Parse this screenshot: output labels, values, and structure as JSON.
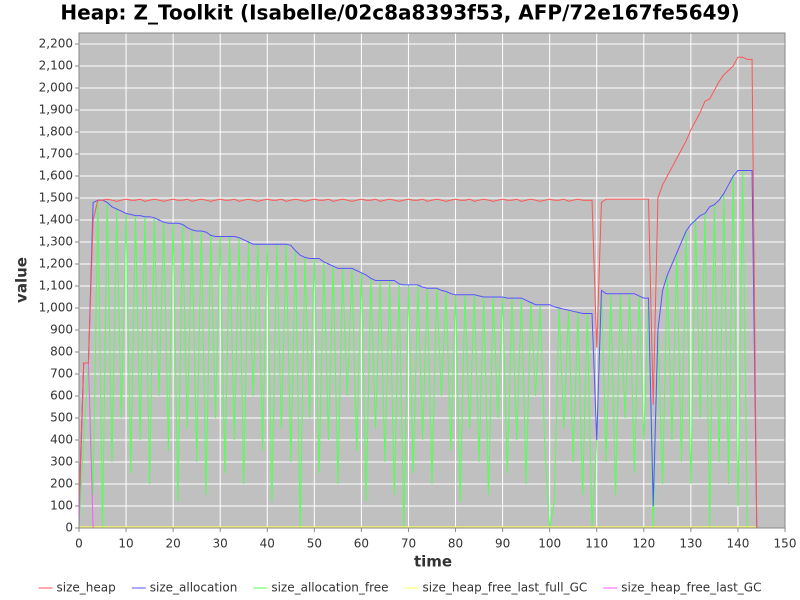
{
  "chart_data": {
    "type": "line",
    "title": "Heap: Z_Toolkit (Isabelle/02c8a8393f53, AFP/72e167fe5649)",
    "x_label": "time",
    "y_label": "value",
    "xlim": [
      0,
      150
    ],
    "xticks": [
      0,
      10,
      20,
      30,
      40,
      50,
      60,
      70,
      80,
      90,
      100,
      110,
      120,
      130,
      140,
      150
    ],
    "ylim": [
      0,
      2250
    ],
    "yticks": [
      0,
      100,
      200,
      300,
      400,
      500,
      600,
      700,
      800,
      900,
      {
        "value": 1000,
        "label": "1,000"
      },
      {
        "value": 1100,
        "label": "1,100"
      },
      {
        "value": 1200,
        "label": "1,200"
      },
      {
        "value": 1300,
        "label": "1,300"
      },
      {
        "value": 1400,
        "label": "1,400"
      },
      {
        "value": 1500,
        "label": "1,500"
      },
      {
        "value": 1600,
        "label": "1,600"
      },
      {
        "value": 1700,
        "label": "1,700"
      },
      {
        "value": 1800,
        "label": "1,800"
      },
      {
        "value": 1900,
        "label": "1,900"
      },
      {
        "value": 2000,
        "label": "2,000"
      },
      {
        "value": 2100,
        "label": "2,100"
      },
      {
        "value": 2200,
        "label": "2,200"
      }
    ],
    "grid": true,
    "legend": "bottom",
    "x": [
      0,
      1,
      2,
      3,
      4,
      5,
      6,
      7,
      8,
      9,
      10,
      11,
      12,
      13,
      14,
      15,
      16,
      17,
      18,
      19,
      20,
      21,
      22,
      23,
      24,
      25,
      26,
      27,
      28,
      29,
      30,
      31,
      32,
      33,
      34,
      35,
      36,
      37,
      38,
      39,
      40,
      41,
      42,
      43,
      44,
      45,
      46,
      47,
      48,
      49,
      50,
      51,
      52,
      53,
      54,
      55,
      56,
      57,
      58,
      59,
      60,
      61,
      62,
      63,
      64,
      65,
      66,
      67,
      68,
      69,
      70,
      71,
      72,
      73,
      74,
      75,
      76,
      77,
      78,
      79,
      80,
      81,
      82,
      83,
      84,
      85,
      86,
      87,
      88,
      89,
      90,
      91,
      92,
      93,
      94,
      95,
      96,
      97,
      98,
      99,
      100,
      101,
      102,
      103,
      104,
      105,
      106,
      107,
      108,
      109,
      110,
      111,
      112,
      113,
      114,
      115,
      116,
      117,
      118,
      119,
      120,
      121,
      122,
      123,
      124,
      125,
      126,
      127,
      128,
      129,
      130,
      131,
      132,
      133,
      134,
      135,
      136,
      137,
      138,
      139,
      140,
      141,
      142,
      143,
      144
    ],
    "series": [
      {
        "name": "size_heap",
        "color": "#ff5555",
        "values": [
          100,
          750,
          750,
          1400,
          1490,
          1490,
          1495,
          1490,
          1485,
          1490,
          1495,
          1490,
          1490,
          1495,
          1485,
          1490,
          1495,
          1490,
          1485,
          1490,
          1495,
          1490,
          1490,
          1495,
          1485,
          1490,
          1495,
          1490,
          1485,
          1490,
          1495,
          1490,
          1490,
          1495,
          1485,
          1490,
          1495,
          1490,
          1485,
          1490,
          1495,
          1490,
          1490,
          1495,
          1485,
          1490,
          1495,
          1490,
          1485,
          1490,
          1495,
          1490,
          1490,
          1495,
          1485,
          1490,
          1495,
          1490,
          1485,
          1490,
          1495,
          1490,
          1490,
          1495,
          1485,
          1490,
          1495,
          1490,
          1485,
          1490,
          1495,
          1490,
          1490,
          1495,
          1485,
          1490,
          1495,
          1490,
          1485,
          1490,
          1495,
          1490,
          1490,
          1495,
          1485,
          1490,
          1495,
          1490,
          1485,
          1490,
          1495,
          1490,
          1490,
          1495,
          1485,
          1490,
          1495,
          1490,
          1485,
          1490,
          1495,
          1490,
          1490,
          1495,
          1485,
          1490,
          1495,
          1490,
          1490,
          1490,
          820,
          1480,
          1495,
          1495,
          1495,
          1495,
          1495,
          1495,
          1495,
          1495,
          1495,
          1495,
          560,
          1500,
          1560,
          1600,
          1640,
          1680,
          1720,
          1760,
          1810,
          1850,
          1890,
          1940,
          1950,
          1990,
          2030,
          2060,
          2080,
          2100,
          2140,
          2140,
          2130,
          2130,
          0
        ]
      },
      {
        "name": "size_allocation",
        "color": "#5555ff",
        "values": [
          100,
          750,
          750,
          1480,
          1490,
          1490,
          1480,
          1460,
          1450,
          1440,
          1430,
          1425,
          1420,
          1420,
          1415,
          1415,
          1410,
          1400,
          1390,
          1385,
          1385,
          1385,
          1380,
          1365,
          1355,
          1350,
          1350,
          1345,
          1330,
          1325,
          1325,
          1325,
          1325,
          1325,
          1320,
          1310,
          1300,
          1290,
          1290,
          1290,
          1290,
          1290,
          1290,
          1290,
          1290,
          1285,
          1260,
          1240,
          1230,
          1225,
          1225,
          1225,
          1210,
          1200,
          1190,
          1180,
          1180,
          1180,
          1180,
          1170,
          1160,
          1150,
          1135,
          1125,
          1125,
          1125,
          1125,
          1125,
          1110,
          1105,
          1105,
          1105,
          1105,
          1095,
          1090,
          1090,
          1090,
          1080,
          1075,
          1065,
          1060,
          1060,
          1060,
          1060,
          1060,
          1055,
          1050,
          1050,
          1050,
          1050,
          1050,
          1045,
          1045,
          1045,
          1045,
          1035,
          1025,
          1015,
          1015,
          1015,
          1015,
          1005,
          1000,
          995,
          990,
          985,
          980,
          975,
          975,
          975,
          400,
          1080,
          1065,
          1065,
          1065,
          1065,
          1065,
          1065,
          1065,
          1055,
          1045,
          1045,
          100,
          900,
          1080,
          1150,
          1200,
          1250,
          1300,
          1350,
          1380,
          1400,
          1420,
          1430,
          1460,
          1470,
          1490,
          1520,
          1560,
          1600,
          1625,
          1625,
          1625,
          1625,
          0
        ]
      },
      {
        "name": "size_allocation_free",
        "color": "#55ff55",
        "values": [
          0,
          400,
          750,
          150,
          1490,
          0,
          1480,
          300,
          1450,
          500,
          1430,
          250,
          1420,
          400,
          1415,
          200,
          1410,
          600,
          1390,
          350,
          1385,
          120,
          1380,
          450,
          1355,
          300,
          1350,
          150,
          1330,
          500,
          1325,
          250,
          1325,
          400,
          1320,
          200,
          1300,
          600,
          1290,
          350,
          1290,
          120,
          1290,
          450,
          1290,
          300,
          1260,
          0,
          1230,
          500,
          1225,
          250,
          1210,
          400,
          1190,
          200,
          1180,
          600,
          1180,
          350,
          1160,
          120,
          1135,
          450,
          1125,
          300,
          1125,
          150,
          1110,
          0,
          1105,
          250,
          1105,
          400,
          1090,
          200,
          1090,
          600,
          1075,
          350,
          1060,
          120,
          1060,
          450,
          1060,
          300,
          1050,
          150,
          1050,
          500,
          1050,
          250,
          1045,
          400,
          1045,
          200,
          1025,
          600,
          1015,
          350,
          0,
          120,
          1000,
          450,
          990,
          300,
          980,
          150,
          975,
          0,
          400,
          1080,
          300,
          1065,
          150,
          1065,
          500,
          1065,
          250,
          1055,
          400,
          1045,
          0,
          900,
          200,
          1150,
          400,
          1250,
          300,
          1350,
          200,
          1400,
          500,
          1430,
          0,
          1470,
          300,
          1520,
          200,
          1600,
          100,
          1625,
          0,
          0,
          0
        ]
      },
      {
        "name": "size_heap_free_last_full_GC",
        "color": "#ffff55",
        "values": [
          5,
          5,
          5,
          5,
          5,
          5,
          5,
          5,
          5,
          5,
          5,
          5,
          5,
          5,
          5,
          5,
          5,
          5,
          5,
          5,
          5,
          5,
          5,
          5,
          5,
          5,
          5,
          5,
          5,
          5,
          5,
          5,
          5,
          5,
          5,
          5,
          5,
          5,
          5,
          5,
          5,
          5,
          5,
          5,
          5,
          5,
          5,
          5,
          5,
          5,
          5,
          5,
          5,
          5,
          5,
          5,
          5,
          5,
          5,
          5,
          5,
          5,
          5,
          5,
          5,
          5,
          5,
          5,
          5,
          5,
          5,
          5,
          5,
          5,
          5,
          5,
          5,
          5,
          5,
          5,
          5,
          5,
          5,
          5,
          5,
          5,
          5,
          5,
          5,
          5,
          5,
          5,
          5,
          5,
          5,
          5,
          5,
          5,
          5,
          5,
          5,
          5,
          5,
          5,
          5,
          5,
          5,
          5,
          5,
          5,
          5,
          5,
          5,
          5,
          5,
          5,
          5,
          5,
          5,
          5,
          5,
          5,
          5,
          5,
          5,
          5,
          5,
          5,
          5,
          5,
          5,
          5,
          5,
          5,
          5,
          5,
          5,
          5,
          5,
          5,
          5,
          5,
          5,
          5,
          5
        ]
      },
      {
        "name": "size_heap_free_last_GC",
        "color": "#ff55ff",
        "values": [
          0,
          750,
          750,
          0,
          0,
          0,
          0,
          0,
          0,
          0,
          0,
          0,
          0,
          0,
          0,
          0,
          0,
          0,
          0,
          0,
          0,
          0,
          0,
          0,
          0,
          0,
          0,
          0,
          0,
          0,
          0,
          0,
          0,
          0,
          0,
          0,
          0,
          0,
          0,
          0,
          0,
          0,
          0,
          0,
          0,
          0,
          0,
          0,
          0,
          0,
          0,
          0,
          0,
          0,
          0,
          0,
          0,
          0,
          0,
          0,
          0,
          0,
          0,
          0,
          0,
          0,
          0,
          0,
          0,
          0,
          0,
          0,
          0,
          0,
          0,
          0,
          0,
          0,
          0,
          0,
          0,
          0,
          0,
          0,
          0,
          0,
          0,
          0,
          0,
          0,
          0,
          0,
          0,
          0,
          0,
          0,
          0,
          0,
          0,
          0,
          0,
          0,
          0,
          0,
          0,
          0,
          0,
          0,
          0,
          0,
          0,
          0,
          0,
          0,
          0,
          0,
          0,
          0,
          0,
          0,
          0,
          0,
          0,
          0,
          0,
          0,
          0,
          0,
          0,
          0,
          0,
          0,
          0,
          0,
          0,
          0,
          0,
          0,
          0,
          0,
          0,
          0,
          0,
          0,
          0
        ]
      }
    ]
  }
}
